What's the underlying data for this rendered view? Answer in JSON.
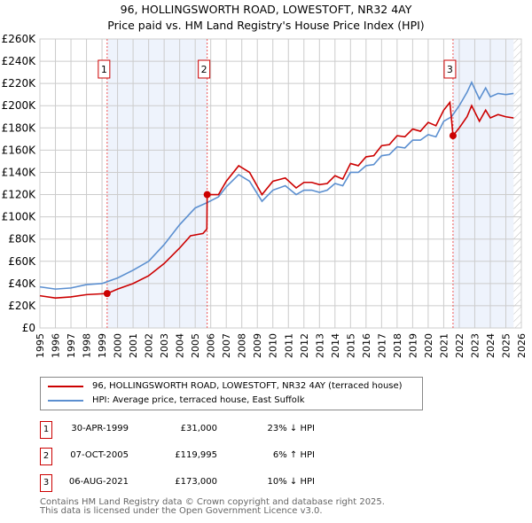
{
  "chart_data": {
    "type": "line",
    "title": "96, HOLLINGSWORTH ROAD, LOWESTOFT, NR32 4AY",
    "subtitle": "Price paid vs. HM Land Registry's House Price Index (HPI)",
    "xlim": [
      1995,
      2026
    ],
    "ylim": [
      0,
      260000
    ],
    "x_ticks": [
      "1995",
      "1996",
      "1997",
      "1998",
      "1999",
      "2000",
      "2001",
      "2002",
      "2003",
      "2004",
      "2005",
      "2006",
      "2007",
      "2008",
      "2009",
      "2010",
      "2011",
      "2012",
      "2013",
      "2014",
      "2015",
      "2016",
      "2017",
      "2018",
      "2019",
      "2020",
      "2021",
      "2022",
      "2023",
      "2024",
      "2025",
      "2026"
    ],
    "y_ticks": [
      "£0",
      "£20K",
      "£40K",
      "£60K",
      "£80K",
      "£100K",
      "£120K",
      "£140K",
      "£160K",
      "£180K",
      "£200K",
      "£220K",
      "£240K",
      "£260K"
    ],
    "grid": true,
    "series": [
      {
        "name": "96, HOLLINGSWORTH ROAD, LOWESTOFT, NR32 4AY (terraced house)",
        "color": "#cc0000",
        "x": [
          1995,
          1996,
          1997,
          1998,
          1999.33,
          2000,
          2001,
          2002,
          2003,
          2004,
          2004.7,
          2005.5,
          2005.75,
          2005.77,
          2006.5,
          2007,
          2007.8,
          2008.5,
          2009.3,
          2010,
          2010.8,
          2011.5,
          2012,
          2012.5,
          2013,
          2013.5,
          2014,
          2014.5,
          2015,
          2015.5,
          2016,
          2016.5,
          2017,
          2017.5,
          2018,
          2018.5,
          2019,
          2019.5,
          2020,
          2020.5,
          2021,
          2021.4,
          2021.6,
          2022,
          2022.5,
          2022.8,
          2023.3,
          2023.7,
          2024,
          2024.5,
          2025,
          2025.5
        ],
        "y": [
          29000,
          27000,
          28000,
          30000,
          31000,
          35000,
          40000,
          47000,
          58000,
          72000,
          83000,
          85000,
          89000,
          119995,
          120000,
          132000,
          146000,
          140000,
          120000,
          132000,
          135000,
          126000,
          131000,
          131000,
          129000,
          130000,
          137000,
          134000,
          148000,
          146000,
          154000,
          155000,
          164000,
          165000,
          173000,
          172000,
          179000,
          177000,
          185000,
          182000,
          196000,
          203000,
          173000,
          180000,
          190000,
          200000,
          186000,
          196000,
          189000,
          192000,
          190000,
          189000
        ]
      },
      {
        "name": "HPI: Average price, terraced house, East Suffolk",
        "color": "#5b8fd0",
        "x": [
          1995,
          1996,
          1997,
          1998,
          1999,
          2000,
          2001,
          2002,
          2003,
          2004,
          2005,
          2005.8,
          2006.5,
          2007,
          2007.8,
          2008.5,
          2009.3,
          2010,
          2010.8,
          2011.5,
          2012,
          2012.5,
          2013,
          2013.5,
          2014,
          2014.5,
          2015,
          2015.5,
          2016,
          2016.5,
          2017,
          2017.5,
          2018,
          2018.5,
          2019,
          2019.5,
          2020,
          2020.5,
          2021,
          2021.5,
          2022,
          2022.5,
          2022.8,
          2023.3,
          2023.7,
          2024,
          2024.5,
          2025,
          2025.5
        ],
        "y": [
          37000,
          35000,
          36000,
          39000,
          40000,
          45000,
          52000,
          60000,
          75000,
          93000,
          108000,
          113000,
          118000,
          127000,
          138000,
          132000,
          114000,
          124000,
          128000,
          120000,
          124000,
          124000,
          122000,
          124000,
          130000,
          128000,
          140000,
          140000,
          146000,
          147000,
          155000,
          156000,
          163000,
          162000,
          169000,
          169000,
          174000,
          172000,
          186000,
          190000,
          200000,
          212000,
          221000,
          206000,
          216000,
          208000,
          211000,
          210000,
          211000
        ]
      }
    ],
    "sales": [
      {
        "label": "1",
        "x": 1999.33,
        "y": 31000,
        "date": "30-APR-1999",
        "price": "£31,000",
        "hpi": "23% ↓ HPI"
      },
      {
        "label": "2",
        "x": 2005.77,
        "y": 119995,
        "date": "07-OCT-2005",
        "price": "£119,995",
        "hpi": "6% ↑ HPI"
      },
      {
        "label": "3",
        "x": 2021.6,
        "y": 173000,
        "date": "06-AUG-2021",
        "price": "£173,000",
        "hpi": "10% ↓ HPI"
      }
    ],
    "hatch_from": 2025.5
  },
  "legend": {
    "red": "96, HOLLINGSWORTH ROAD, LOWESTOFT, NR32 4AY (terraced house)",
    "blue": "HPI: Average price, terraced house, East Suffolk"
  },
  "footer": {
    "line1": "Contains HM Land Registry data © Crown copyright and database right 2025.",
    "line2": "This data is licensed under the Open Government Licence v3.0."
  }
}
